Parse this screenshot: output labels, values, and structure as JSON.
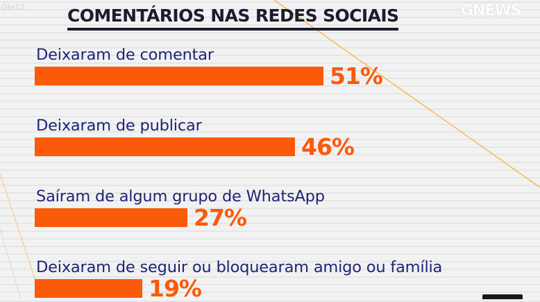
{
  "header": {
    "title": "COMENTÁRIOS NAS REDES SOCIAIS",
    "logo_text": "GNEWS",
    "corner_tag": "Gte12"
  },
  "colors": {
    "bar": "#fa5a0a",
    "label": "#1f2478",
    "title": "#1c1c2e",
    "deco_line": "#f5b942"
  },
  "chart_data": {
    "type": "bar",
    "orientation": "horizontal",
    "title": "COMENTÁRIOS NAS REDES SOCIAIS",
    "categories": [
      "Deixaram de comentar",
      "Deixaram de publicar",
      "Saíram de algum grupo de WhatsApp",
      "Deixaram de seguir ou bloquearam amigo ou família"
    ],
    "values": [
      51,
      46,
      27,
      19
    ],
    "value_labels": [
      "51%",
      "46%",
      "27%",
      "19%"
    ],
    "unit": "%",
    "xlim": [
      0,
      100
    ],
    "grid": false,
    "legend": "none"
  }
}
